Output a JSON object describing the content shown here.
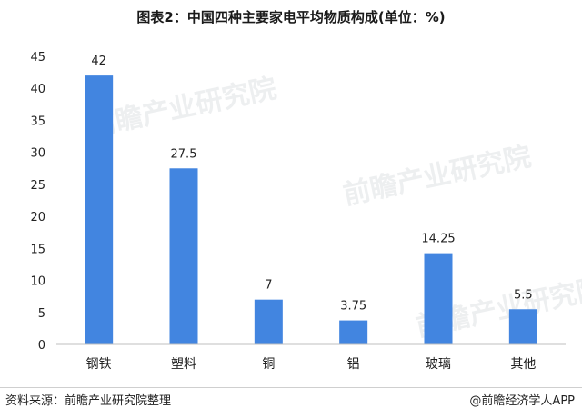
{
  "title": "图表2：中国四种主要家电平均物质构成(单位：%)",
  "footer": {
    "source": "资料来源：前瞻产业研究院整理",
    "brand": "@前瞻经济学人APP"
  },
  "watermark": "前瞻产业研究院",
  "colors": {
    "bar": "#4285e0",
    "axis": "#bfbfbf",
    "text": "#222222"
  },
  "chart_data": {
    "type": "bar",
    "categories": [
      "钢铁",
      "塑料",
      "铜",
      "铝",
      "玻璃",
      "其他"
    ],
    "values": [
      42,
      27.5,
      7,
      3.75,
      14.25,
      5.5
    ],
    "data_labels": [
      "42",
      "27.5",
      "7",
      "3.75",
      "14.25",
      "5.5"
    ],
    "ylim": [
      0,
      45
    ],
    "yticks": [
      "0",
      "5",
      "10",
      "15",
      "20",
      "25",
      "30",
      "35",
      "40",
      "45"
    ],
    "grid": false
  }
}
